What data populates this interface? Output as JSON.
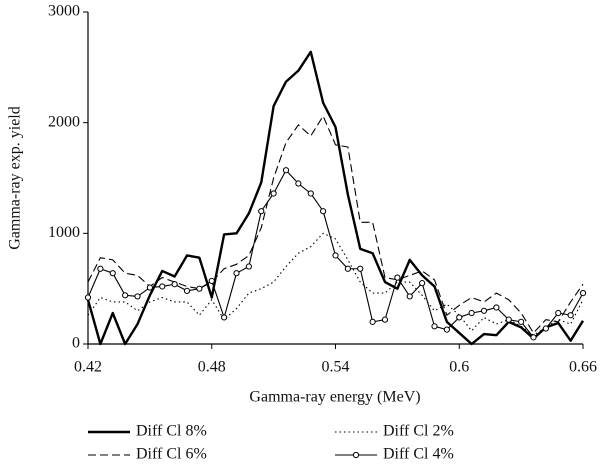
{
  "chart_data": {
    "type": "line",
    "xlabel": "Gamma-ray energy (MeV)",
    "ylabel": "Gamma-ray exp. yield",
    "x": [
      0.42,
      0.426,
      0.432,
      0.438,
      0.444,
      0.45,
      0.456,
      0.462,
      0.468,
      0.474,
      0.48,
      0.486,
      0.492,
      0.498,
      0.504,
      0.51,
      0.516,
      0.522,
      0.528,
      0.534,
      0.54,
      0.546,
      0.552,
      0.558,
      0.564,
      0.57,
      0.576,
      0.582,
      0.588,
      0.594,
      0.6,
      0.606,
      0.612,
      0.618,
      0.624,
      0.63,
      0.636,
      0.642,
      0.648,
      0.654,
      0.66
    ],
    "series": [
      {
        "name": "Diff Cl 8%",
        "color": "#000000",
        "line_style": "solid",
        "width": 2.4,
        "values": [
          400,
          0,
          280,
          0,
          180,
          440,
          660,
          610,
          800,
          780,
          420,
          990,
          1000,
          1180,
          1460,
          2150,
          2370,
          2470,
          2640,
          2180,
          1960,
          1350,
          860,
          820,
          560,
          500,
          760,
          620,
          520,
          200,
          100,
          0,
          90,
          80,
          200,
          150,
          50,
          150,
          190,
          30,
          210
        ]
      },
      {
        "name": "Diff Cl 6%",
        "color": "#000000",
        "line_style": "dashed",
        "width": 1.1,
        "values": [
          560,
          780,
          760,
          640,
          620,
          520,
          600,
          560,
          520,
          500,
          560,
          680,
          720,
          800,
          1050,
          1500,
          1820,
          1980,
          1880,
          2060,
          1800,
          1780,
          1100,
          1100,
          600,
          580,
          620,
          660,
          580,
          260,
          350,
          420,
          380,
          460,
          400,
          280,
          100,
          220,
          200,
          380,
          540
        ]
      },
      {
        "name": "Diff Cl 2%",
        "color": "#000000",
        "line_style": "dotted",
        "width": 1.1,
        "values": [
          260,
          420,
          380,
          380,
          300,
          380,
          420,
          380,
          380,
          260,
          400,
          220,
          320,
          460,
          500,
          560,
          700,
          820,
          880,
          1000,
          950,
          760,
          560,
          460,
          460,
          560,
          560,
          440,
          300,
          360,
          260,
          120,
          240,
          180,
          220,
          160,
          80,
          150,
          220,
          180,
          400
        ]
      },
      {
        "name": "Diff Cl 4%",
        "color": "#000000",
        "line_style": "solid",
        "marker": "circle",
        "width": 1.1,
        "values": [
          420,
          680,
          640,
          440,
          430,
          510,
          520,
          540,
          480,
          500,
          570,
          240,
          640,
          700,
          1200,
          1360,
          1570,
          1450,
          1360,
          1200,
          800,
          680,
          680,
          200,
          220,
          600,
          430,
          550,
          160,
          130,
          240,
          280,
          300,
          330,
          220,
          200,
          60,
          140,
          280,
          260,
          460
        ]
      }
    ],
    "xlim": [
      0.42,
      0.66
    ],
    "xticks": [
      0.42,
      0.48,
      0.54,
      0.6,
      0.66
    ],
    "ylim": [
      0,
      3000
    ],
    "yticks": [
      0,
      1000,
      2000,
      3000
    ],
    "grid": false,
    "legend": "bottom"
  }
}
